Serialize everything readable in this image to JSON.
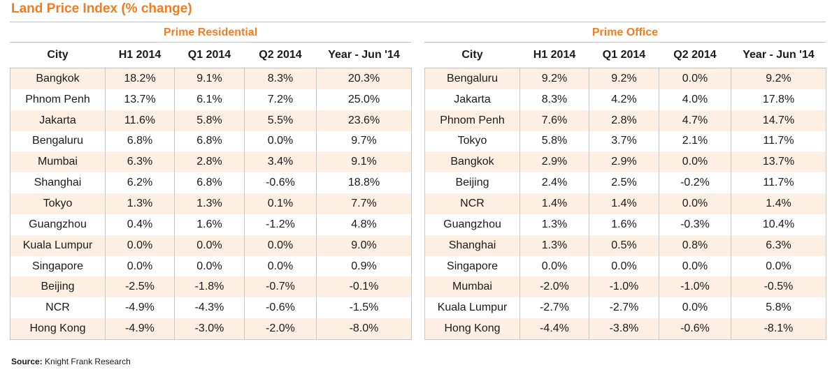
{
  "chart_data": {
    "type": "table",
    "title": "Land Price Index (% change)",
    "source_label": "Source:",
    "source_text": "Knight Frank Research",
    "tables": [
      {
        "name": "Prime Residential",
        "columns": [
          "City",
          "H1 2014",
          "Q1 2014",
          "Q2 2014",
          "Year - Jun '14"
        ],
        "rows": [
          [
            "Bangkok",
            "18.2%",
            "9.1%",
            "8.3%",
            "20.3%"
          ],
          [
            "Phnom Penh",
            "13.7%",
            "6.1%",
            "7.2%",
            "25.0%"
          ],
          [
            "Jakarta",
            "11.6%",
            "5.8%",
            "5.5%",
            "23.6%"
          ],
          [
            "Bengaluru",
            "6.8%",
            "6.8%",
            "0.0%",
            "9.7%"
          ],
          [
            "Mumbai",
            "6.3%",
            "2.8%",
            "3.4%",
            "9.1%"
          ],
          [
            "Shanghai",
            "6.2%",
            "6.8%",
            "-0.6%",
            "18.8%"
          ],
          [
            "Tokyo",
            "1.3%",
            "1.3%",
            "0.1%",
            "7.7%"
          ],
          [
            "Guangzhou",
            "0.4%",
            "1.6%",
            "-1.2%",
            "4.8%"
          ],
          [
            "Kuala Lumpur",
            "0.0%",
            "0.0%",
            "0.0%",
            "9.0%"
          ],
          [
            "Singapore",
            "0.0%",
            "0.0%",
            "0.0%",
            "0.9%"
          ],
          [
            "Beijing",
            "-2.5%",
            "-1.8%",
            "-0.7%",
            "-0.1%"
          ],
          [
            "NCR",
            "-4.9%",
            "-4.3%",
            "-0.6%",
            "-1.5%"
          ],
          [
            "Hong Kong",
            "-4.9%",
            "-3.0%",
            "-2.0%",
            "-8.0%"
          ]
        ]
      },
      {
        "name": "Prime Office",
        "columns": [
          "City",
          "H1 2014",
          "Q1 2014",
          "Q2 2014",
          "Year - Jun '14"
        ],
        "rows": [
          [
            "Bengaluru",
            "9.2%",
            "9.2%",
            "0.0%",
            "9.2%"
          ],
          [
            "Jakarta",
            "8.3%",
            "4.2%",
            "4.0%",
            "17.8%"
          ],
          [
            "Phnom Penh",
            "7.6%",
            "2.8%",
            "4.7%",
            "14.7%"
          ],
          [
            "Tokyo",
            "5.8%",
            "3.7%",
            "2.1%",
            "11.7%"
          ],
          [
            "Bangkok",
            "2.9%",
            "2.9%",
            "0.0%",
            "13.7%"
          ],
          [
            "Beijing",
            "2.4%",
            "2.5%",
            "-0.2%",
            "11.7%"
          ],
          [
            "NCR",
            "1.4%",
            "1.4%",
            "0.0%",
            "1.4%"
          ],
          [
            "Guangzhou",
            "1.3%",
            "1.6%",
            "-0.3%",
            "10.4%"
          ],
          [
            "Shanghai",
            "1.3%",
            "0.5%",
            "0.8%",
            "6.3%"
          ],
          [
            "Singapore",
            "0.0%",
            "0.0%",
            "0.0%",
            "0.0%"
          ],
          [
            "Mumbai",
            "-2.0%",
            "-1.0%",
            "-1.0%",
            "-0.5%"
          ],
          [
            "Kuala Lumpur",
            "-2.7%",
            "-2.7%",
            "0.0%",
            "5.8%"
          ],
          [
            "Hong Kong",
            "-4.4%",
            "-3.8%",
            "-0.6%",
            "-8.1%"
          ]
        ]
      }
    ]
  },
  "colors": {
    "accent": "#ef7d22",
    "band": "#fdf0e3",
    "rule": "#bfbfbf"
  }
}
